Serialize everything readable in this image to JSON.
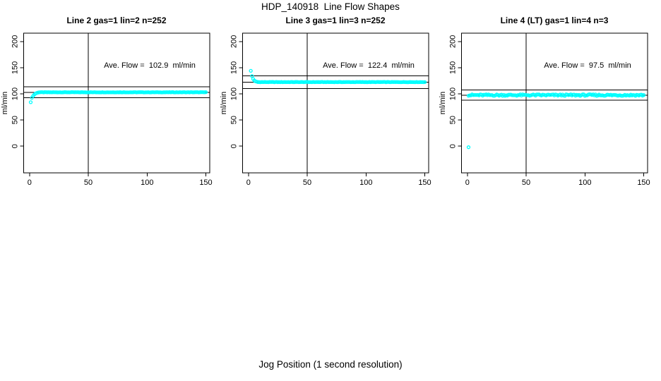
{
  "header": {
    "title": "HDP_140918  Line Flow Shapes"
  },
  "footer": {
    "xlabel": "Jog Position (1 second resolution)"
  },
  "colors": {
    "background": "#ffffff",
    "axis": "#000000",
    "points": "#00ffff"
  },
  "chart_data": [
    {
      "type": "scatter",
      "title": "Line 2 gas=1 lin=2 n=252",
      "annotation": "Ave. Flow =  102.9  ml/min",
      "ave_flow_ml_min": 102.9,
      "ylabel": "ml/min",
      "xticks": [
        0,
        50,
        100,
        150
      ],
      "yticks": [
        0,
        50,
        100,
        150,
        200
      ],
      "xlim": [
        -5,
        153.3
      ],
      "ylim": [
        -51,
        216
      ],
      "vline_x": 50,
      "hlines_y": [
        113.2,
        102.9,
        92.6
      ],
      "point_color": "#00ffff",
      "points_start": [
        [
          1,
          84
        ],
        [
          2,
          92.5
        ],
        [
          3,
          96
        ],
        [
          4,
          98.5
        ],
        [
          5,
          100.5
        ],
        [
          6,
          101.5
        ],
        [
          7,
          102.3
        ],
        [
          8,
          102.8
        ]
      ],
      "plateau": {
        "x_from": 9,
        "x_to": 150,
        "value": 103,
        "jitter": 0.3
      }
    },
    {
      "type": "scatter",
      "title": "Line 3 gas=1 lin=3 n=252",
      "annotation": "Ave. Flow =  122.4  ml/min",
      "ave_flow_ml_min": 122.4,
      "ylabel": "ml/min",
      "xticks": [
        0,
        50,
        100,
        150
      ],
      "yticks": [
        0,
        50,
        100,
        150,
        200
      ],
      "xlim": [
        -5,
        153.3
      ],
      "ylim": [
        -51,
        216
      ],
      "vline_x": 50,
      "hlines_y": [
        134.6,
        122.4,
        110.2
      ],
      "point_color": "#00ffff",
      "points_start": [
        [
          2,
          144
        ],
        [
          3,
          134
        ],
        [
          4,
          128.5
        ],
        [
          5,
          125.5
        ],
        [
          6,
          124
        ],
        [
          7,
          123.3
        ]
      ],
      "plateau": {
        "x_from": 8,
        "x_to": 150,
        "value": 122.5,
        "jitter": 0.3
      }
    },
    {
      "type": "scatter",
      "title": "Line 4 (LT) gas=1 lin=4 n=3",
      "annotation": "Ave. Flow =  97.5  ml/min",
      "ave_flow_ml_min": 97.5,
      "ylabel": "ml/min",
      "xticks": [
        0,
        50,
        100,
        150
      ],
      "yticks": [
        0,
        50,
        100,
        150,
        200
      ],
      "xlim": [
        -5,
        153.3
      ],
      "ylim": [
        -51,
        216
      ],
      "vline_x": 50,
      "hlines_y": [
        107.3,
        97.5,
        87.8
      ],
      "point_color": "#00ffff",
      "points_start": [
        [
          1,
          -2
        ]
      ],
      "plateau": {
        "x_from": 1,
        "x_to": 150,
        "value": 97.6,
        "jitter": 1.5
      }
    }
  ]
}
